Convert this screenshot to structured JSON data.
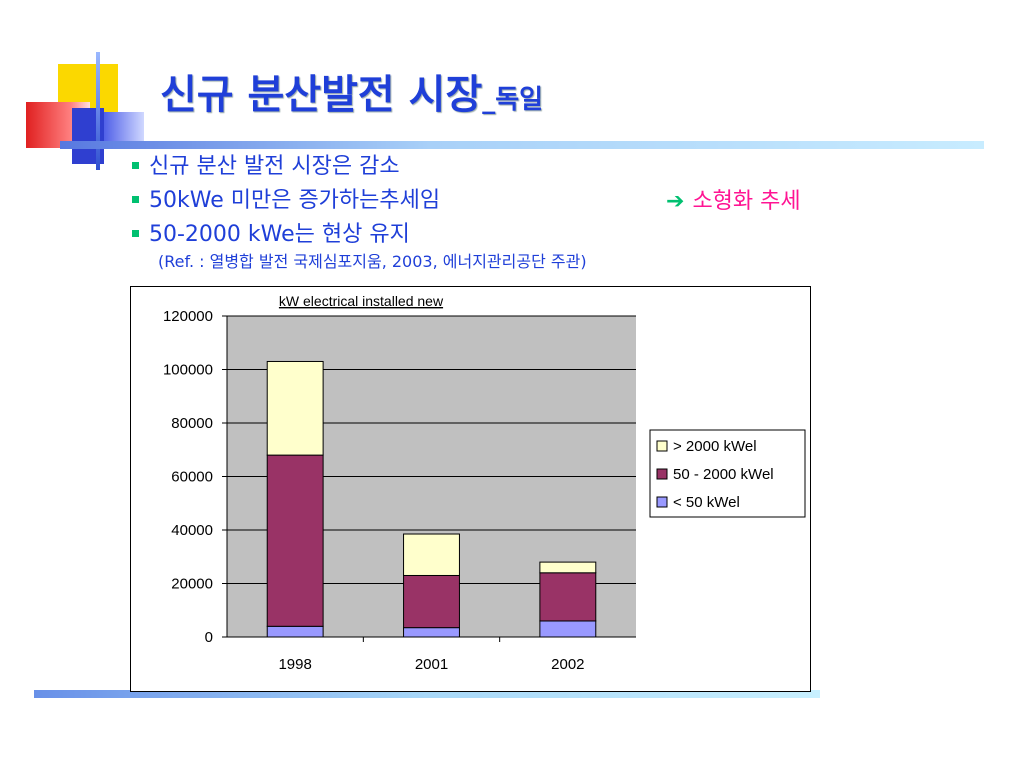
{
  "slide": {
    "title_main": "신규 분산발전 시장",
    "title_sub": "_독일",
    "bullets": [
      "신규 분산 발전 시장은 감소",
      "50kWe 미만은 증가하는추세임",
      "50-2000 kWe는 현상 유지"
    ],
    "reference": "(Ref. : 열병합 발전 국제심포지움, 2003, 에너지관리공단 주관)",
    "trend_arrow": "➔",
    "trend_text": "소형화 추세"
  },
  "colors": {
    "title": "#1f3fd8",
    "bullet_mark": "#00c070",
    "trend": "#ff1493",
    "plot_bg": "#c0c0c0",
    "small": "#9999ff",
    "medium": "#993366",
    "large": "#ffffcc"
  },
  "chart_data": {
    "type": "bar",
    "stacked": true,
    "title": "kW electrical installed new",
    "categories": [
      "1998",
      "2001",
      "2002"
    ],
    "series": [
      {
        "name": "< 50 kWel",
        "color": "#9999ff",
        "values": [
          4000,
          3500,
          6000
        ]
      },
      {
        "name": "50 - 2000 kWel",
        "color": "#993366",
        "values": [
          64000,
          19500,
          18000
        ]
      },
      {
        "name": "> 2000 kWel",
        "color": "#ffffcc",
        "values": [
          35000,
          15500,
          4000
        ]
      }
    ],
    "ylim": [
      0,
      120000
    ],
    "yticks": [
      "0",
      "20000",
      "40000",
      "60000",
      "80000",
      "100000",
      "120000"
    ],
    "legend": [
      "> 2000 kWel",
      "50 - 2000 kWel",
      "< 50 kWel"
    ],
    "legend_position": "right",
    "grid": true
  }
}
